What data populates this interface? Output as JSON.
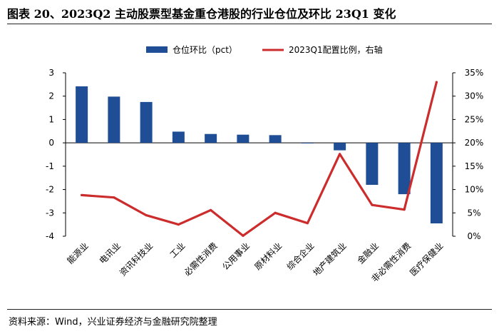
{
  "header": {
    "title": "图表 20、2023Q2 主动股票型基金重仓港股的行业仓位及环比 23Q1 变化"
  },
  "footer": {
    "source": "资料来源：Wind，兴业证券经济与金融研究院整理"
  },
  "colors": {
    "bar": "#1f4e96",
    "line": "#cc2c2c"
  },
  "chart_data": {
    "type": "bar",
    "categories": [
      "能源业",
      "电讯业",
      "资讯科技业",
      "工业",
      "必需性消费",
      "公用事业",
      "原材料业",
      "综合企业",
      "地产建筑业",
      "金融业",
      "非必需性消费",
      "医疗保健业"
    ],
    "series": [
      {
        "name": "仓位环比（pct）",
        "type": "bar",
        "axis": "left",
        "values": [
          2.42,
          1.98,
          1.75,
          0.48,
          0.38,
          0.35,
          0.33,
          -0.02,
          -0.32,
          -1.8,
          -2.2,
          -3.45
        ]
      },
      {
        "name": "2023Q1配置比例，右轴",
        "type": "line",
        "axis": "right",
        "values": [
          8.8,
          8.3,
          4.5,
          2.5,
          5.6,
          0.1,
          5.0,
          2.8,
          17.6,
          6.7,
          5.7,
          33.0
        ]
      }
    ],
    "y_left": {
      "min": -4,
      "max": 3,
      "ticks": [
        "3",
        "2",
        "1",
        "0",
        "-1",
        "-2",
        "-3",
        "-4"
      ]
    },
    "y_right": {
      "min": 0,
      "max": 35,
      "ticks": [
        "35%",
        "30%",
        "25%",
        "20%",
        "15%",
        "10%",
        "5%",
        "0%"
      ]
    },
    "grid": false,
    "legend": "top"
  }
}
